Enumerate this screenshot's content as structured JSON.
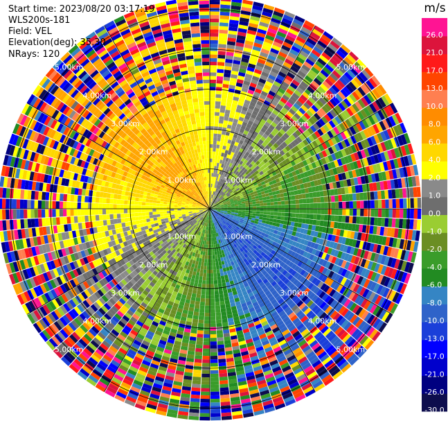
{
  "info": {
    "start_time": "Start time: 2023/08/20 03:17:19",
    "device": "WLS200s-181",
    "field": "Field: VEL",
    "elevation": "Elevation(deg): 35.30",
    "nrays": "NRays: 120"
  },
  "chart_data": {
    "type": "heatmap",
    "projection": "polar-ppi",
    "field": "VEL",
    "n_rays": 120,
    "range_unit": "km",
    "range_rings_km": [
      1,
      2,
      3,
      4,
      5
    ],
    "range_labels": [
      "1.00km",
      "2.00km",
      "3.00km",
      "4.00km",
      "5.00km"
    ],
    "max_range_km": 5.3,
    "colorbar": {
      "unit": "m/s",
      "bounds": [
        -30.0,
        -26.0,
        -21.0,
        -17.0,
        -13.0,
        -10.0,
        -8.0,
        -6.0,
        -4.0,
        -2.0,
        -1.0,
        0.0,
        1.0,
        2.0,
        4.0,
        6.0,
        8.0,
        10.0,
        13.0,
        17.0,
        21.0,
        26.0,
        30.0
      ],
      "tick_labels": [
        "-30.0",
        "-26.0",
        "-21.0",
        "-17.0",
        "-13.0",
        "-10.0",
        "-8.0",
        "-6.0",
        "-4.0",
        "-2.0",
        "-1.0",
        "0.0",
        "1.0",
        "2.0",
        "4.0",
        "6.0",
        "8.0",
        "10.0",
        "13.0",
        "17.0",
        "21.0",
        "26.0"
      ],
      "colors": [
        "#0d0d4d",
        "#000080",
        "#0000cc",
        "#0000ff",
        "#1a3fd9",
        "#2f63c9",
        "#3585c4",
        "#228b22",
        "#3a9c2a",
        "#6b8e23",
        "#9acd32",
        "#6e6e6e",
        "#8a8a8a",
        "#ffff00",
        "#ffd700",
        "#ffa500",
        "#ff8c00",
        "#ff7f50",
        "#ff4500",
        "#ff1a1a",
        "#dc143c",
        "#ff1493"
      ]
    },
    "sector_field": {
      "near_range_km": 1.0,
      "northwest_quadrant": 3.0,
      "southeast_quadrant": -6.0,
      "noise_beyond_km": 3.0
    }
  }
}
